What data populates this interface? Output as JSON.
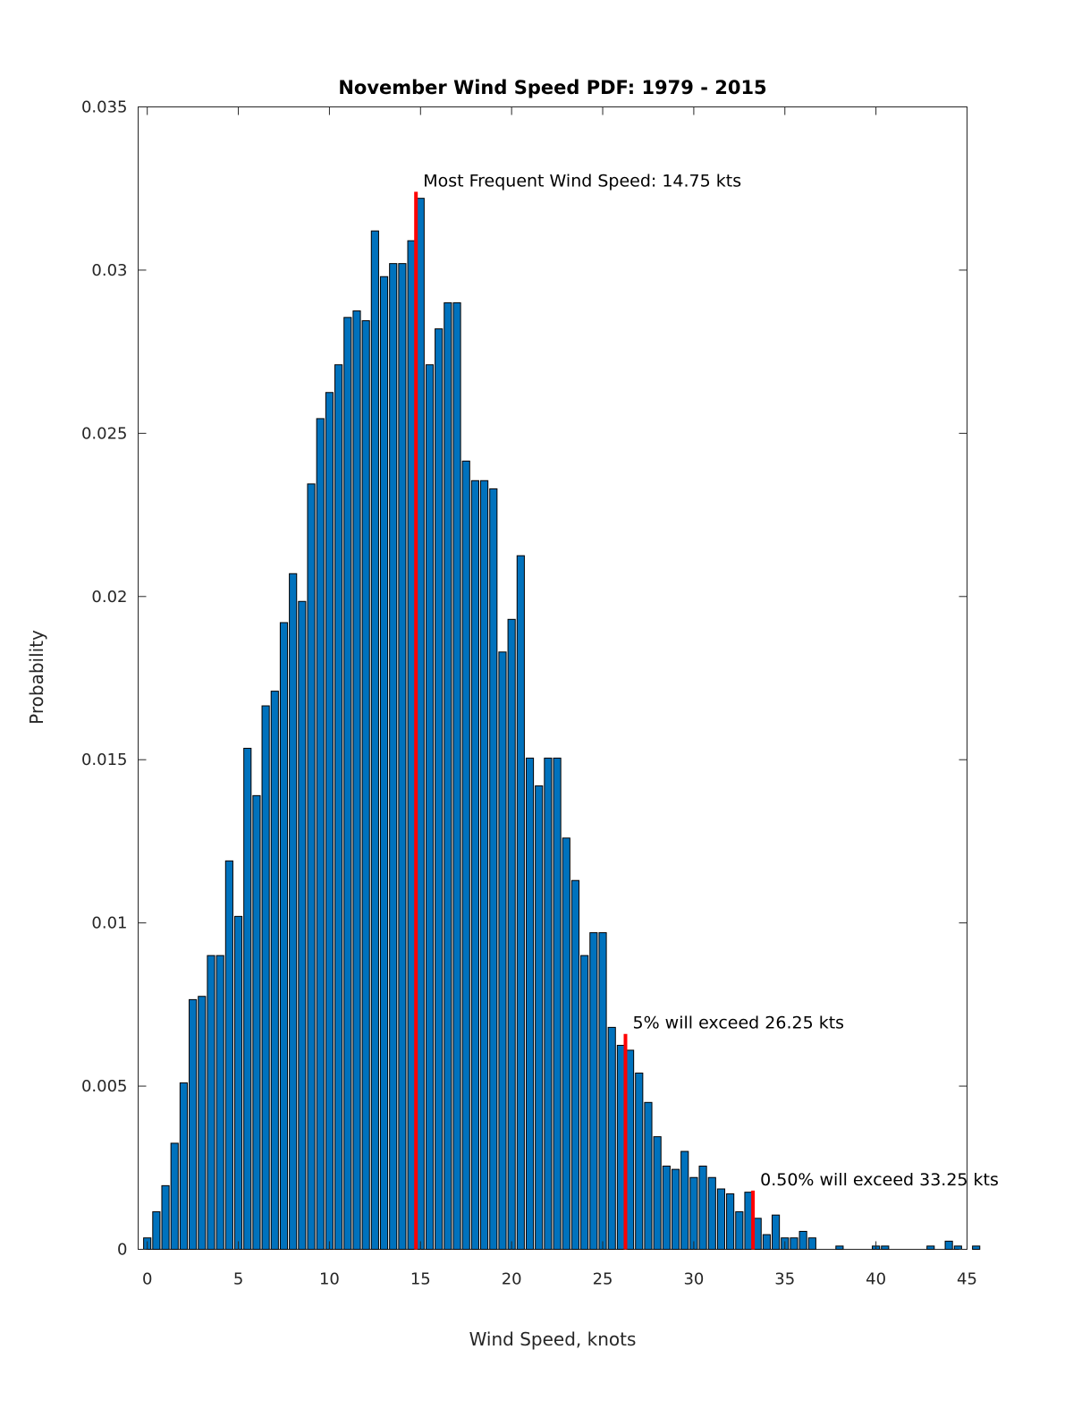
{
  "chart_data": {
    "type": "bar",
    "title": "November Wind Speed PDF: 1979 - 2015",
    "xlabel": "Wind Speed, knots",
    "ylabel": "Probability",
    "xlim": [
      -0.5,
      45
    ],
    "ylim": [
      0,
      0.035
    ],
    "xticks": [
      0,
      5,
      10,
      15,
      20,
      25,
      30,
      35,
      40,
      45
    ],
    "xtick_labels": [
      "0",
      "5",
      "10",
      "15",
      "20",
      "25",
      "30",
      "35",
      "40",
      "45"
    ],
    "yticks": [
      0,
      0.005,
      0.01,
      0.015,
      0.02,
      0.025,
      0.03,
      0.035
    ],
    "ytick_labels": [
      "0",
      "0.005",
      "0.01",
      "0.015",
      "0.02",
      "0.025",
      "0.03",
      "0.035"
    ],
    "grid": false,
    "bar_color": "#0072BD",
    "marker_color": "#ff0000",
    "bin_start": 0,
    "bin_width": 0.5,
    "values": [
      0.00035,
      0.00115,
      0.00195,
      0.00325,
      0.0051,
      0.00765,
      0.00775,
      0.009,
      0.009,
      0.0119,
      0.0102,
      0.01535,
      0.0139,
      0.01665,
      0.0171,
      0.0192,
      0.0207,
      0.01985,
      0.02345,
      0.02545,
      0.02625,
      0.0271,
      0.02855,
      0.02875,
      0.02845,
      0.0312,
      0.0298,
      0.0302,
      0.0302,
      0.0309,
      0.0322,
      0.0271,
      0.0282,
      0.029,
      0.029,
      0.02415,
      0.02355,
      0.02355,
      0.0233,
      0.0183,
      0.0193,
      0.02125,
      0.01505,
      0.0142,
      0.01505,
      0.01505,
      0.0126,
      0.0113,
      0.009,
      0.0097,
      0.0097,
      0.0068,
      0.00625,
      0.0061,
      0.0054,
      0.0045,
      0.00345,
      0.00255,
      0.00245,
      0.003,
      0.0022,
      0.00255,
      0.0022,
      0.00185,
      0.0017,
      0.00115,
      0.00175,
      0.00095,
      0.00045,
      0.00105,
      0.00035,
      0.00035,
      0.00055,
      0.00035,
      0,
      0,
      0.0001,
      0,
      0,
      0,
      0.0001,
      0.0001,
      0,
      0,
      0,
      0,
      0.0001,
      0,
      0.00025,
      0.0001,
      0,
      0.0001
    ],
    "markers": [
      {
        "x": 14.75,
        "y": 0.0324,
        "label": "Most Frequent Wind Speed: 14.75 kts"
      },
      {
        "x": 26.25,
        "y": 0.0066,
        "label": "5% will exceed 26.25 kts"
      },
      {
        "x": 33.25,
        "y": 0.0018,
        "label": "0.50% will exceed 33.25 kts"
      }
    ]
  }
}
